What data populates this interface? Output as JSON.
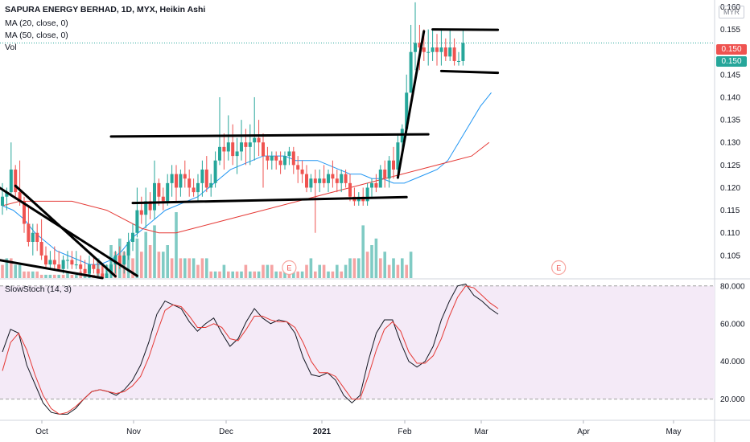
{
  "header": {
    "title": "SAPURA ENERGY BERHAD, 1D, MYX, Heikin Ashi",
    "ma20_label": "MA (20, close, 0)",
    "ma50_label": "MA (50, close, 0)",
    "vol_label": "Vol",
    "currency": "MYR"
  },
  "price_badges": {
    "red": "0.150",
    "green": "0.150"
  },
  "oscillator": {
    "label": "SlowStoch (14, 3)"
  },
  "colors": {
    "up": "#26a69a",
    "down": "#ef5350",
    "ma20": "#2196f3",
    "ma50": "#e53935",
    "vol_up": "#80cbc4",
    "vol_down": "#f5a3a3",
    "stoch_k": "#131722",
    "stoch_d": "#e53935",
    "stoch_band": "#f4eaf7",
    "grid": "#e0e3eb",
    "axis_text": "#131722"
  },
  "chart_data": [
    {
      "type": "candlestick",
      "title": "SAPURA ENERGY BERHAD, 1D, MYX, Heikin Ashi",
      "x_labels": [
        "Oct",
        "Nov",
        "Dec",
        "2021",
        "Feb",
        "Mar",
        "Apr",
        "May"
      ],
      "y_ticks": [
        "0.105",
        "0.110",
        "0.115",
        "0.120",
        "0.125",
        "0.130",
        "0.135",
        "0.140",
        "0.145",
        "0.150",
        "0.155",
        "0.160"
      ],
      "ylim": [
        0.1,
        0.1615
      ],
      "scale": "linear",
      "grid": false,
      "earnings_marks": [
        "E",
        "E"
      ],
      "candles": [
        [
          0.116,
          0.121,
          0.114,
          0.118
        ],
        [
          0.118,
          0.12,
          0.115,
          0.119
        ],
        [
          0.119,
          0.13,
          0.118,
          0.124
        ],
        [
          0.124,
          0.125,
          0.118,
          0.119
        ],
        [
          0.119,
          0.126,
          0.116,
          0.117
        ],
        [
          0.117,
          0.118,
          0.11,
          0.112
        ],
        [
          0.112,
          0.116,
          0.107,
          0.108
        ],
        [
          0.108,
          0.112,
          0.105,
          0.11
        ],
        [
          0.11,
          0.112,
          0.106,
          0.108
        ],
        [
          0.108,
          0.113,
          0.104,
          0.105
        ],
        [
          0.105,
          0.107,
          0.102,
          0.103
        ],
        [
          0.103,
          0.106,
          0.102,
          0.104
        ],
        [
          0.104,
          0.107,
          0.102,
          0.103
        ],
        [
          0.103,
          0.106,
          0.102,
          0.102
        ],
        [
          0.102,
          0.105,
          0.101,
          0.104
        ],
        [
          0.104,
          0.106,
          0.102,
          0.104
        ],
        [
          0.104,
          0.106,
          0.102,
          0.103
        ],
        [
          0.103,
          0.106,
          0.102,
          0.103
        ],
        [
          0.103,
          0.105,
          0.101,
          0.102
        ],
        [
          0.102,
          0.104,
          0.101,
          0.101
        ],
        [
          0.101,
          0.105,
          0.1,
          0.103
        ],
        [
          0.103,
          0.105,
          0.101,
          0.102
        ],
        [
          0.102,
          0.104,
          0.1,
          0.101
        ],
        [
          0.101,
          0.103,
          0.1,
          0.1
        ],
        [
          0.1,
          0.103,
          0.1,
          0.101
        ],
        [
          0.101,
          0.104,
          0.1,
          0.103
        ],
        [
          0.103,
          0.106,
          0.101,
          0.105
        ],
        [
          0.105,
          0.107,
          0.102,
          0.103
        ],
        [
          0.103,
          0.106,
          0.101,
          0.105
        ],
        [
          0.105,
          0.11,
          0.104,
          0.108
        ],
        [
          0.108,
          0.112,
          0.106,
          0.11
        ],
        [
          0.11,
          0.12,
          0.109,
          0.115
        ],
        [
          0.115,
          0.118,
          0.112,
          0.114
        ],
        [
          0.114,
          0.12,
          0.111,
          0.117
        ],
        [
          0.117,
          0.119,
          0.113,
          0.115
        ],
        [
          0.115,
          0.126,
          0.113,
          0.121
        ],
        [
          0.121,
          0.122,
          0.116,
          0.118
        ],
        [
          0.118,
          0.12,
          0.115,
          0.117
        ],
        [
          0.117,
          0.123,
          0.116,
          0.121
        ],
        [
          0.121,
          0.125,
          0.118,
          0.123
        ],
        [
          0.123,
          0.125,
          0.117,
          0.12
        ],
        [
          0.12,
          0.124,
          0.118,
          0.123
        ],
        [
          0.123,
          0.126,
          0.12,
          0.122
        ],
        [
          0.122,
          0.124,
          0.118,
          0.12
        ],
        [
          0.12,
          0.122,
          0.118,
          0.119
        ],
        [
          0.119,
          0.123,
          0.117,
          0.121
        ],
        [
          0.121,
          0.126,
          0.118,
          0.124
        ],
        [
          0.124,
          0.127,
          0.119,
          0.12
        ],
        [
          0.12,
          0.123,
          0.118,
          0.121
        ],
        [
          0.121,
          0.128,
          0.12,
          0.126
        ],
        [
          0.126,
          0.14,
          0.125,
          0.129
        ],
        [
          0.129,
          0.132,
          0.124,
          0.128
        ],
        [
          0.128,
          0.136,
          0.126,
          0.13
        ],
        [
          0.13,
          0.134,
          0.125,
          0.127
        ],
        [
          0.127,
          0.131,
          0.123,
          0.128
        ],
        [
          0.128,
          0.135,
          0.126,
          0.13
        ],
        [
          0.13,
          0.133,
          0.125,
          0.129
        ],
        [
          0.129,
          0.134,
          0.125,
          0.13
        ],
        [
          0.13,
          0.14,
          0.126,
          0.131
        ],
        [
          0.131,
          0.135,
          0.127,
          0.13
        ],
        [
          0.13,
          0.132,
          0.12,
          0.127
        ],
        [
          0.127,
          0.129,
          0.124,
          0.126
        ],
        [
          0.126,
          0.128,
          0.124,
          0.127
        ],
        [
          0.127,
          0.128,
          0.124,
          0.126
        ],
        [
          0.126,
          0.128,
          0.123,
          0.125
        ],
        [
          0.125,
          0.128,
          0.124,
          0.127
        ],
        [
          0.127,
          0.129,
          0.125,
          0.128
        ],
        [
          0.128,
          0.129,
          0.123,
          0.125
        ],
        [
          0.125,
          0.127,
          0.121,
          0.124
        ],
        [
          0.124,
          0.126,
          0.121,
          0.123
        ],
        [
          0.123,
          0.125,
          0.119,
          0.12
        ],
        [
          0.12,
          0.123,
          0.119,
          0.122
        ],
        [
          0.122,
          0.124,
          0.11,
          0.121
        ],
        [
          0.121,
          0.124,
          0.119,
          0.122
        ],
        [
          0.122,
          0.125,
          0.12,
          0.121
        ],
        [
          0.121,
          0.124,
          0.119,
          0.123
        ],
        [
          0.123,
          0.126,
          0.12,
          0.122
        ],
        [
          0.122,
          0.124,
          0.119,
          0.121
        ],
        [
          0.121,
          0.124,
          0.119,
          0.123
        ],
        [
          0.123,
          0.124,
          0.12,
          0.121
        ],
        [
          0.121,
          0.123,
          0.117,
          0.118
        ],
        [
          0.118,
          0.12,
          0.116,
          0.117
        ],
        [
          0.117,
          0.119,
          0.116,
          0.118
        ],
        [
          0.118,
          0.12,
          0.116,
          0.117
        ],
        [
          0.117,
          0.121,
          0.116,
          0.12
        ],
        [
          0.12,
          0.122,
          0.118,
          0.121
        ],
        [
          0.121,
          0.123,
          0.119,
          0.12
        ],
        [
          0.12,
          0.125,
          0.12,
          0.124
        ],
        [
          0.124,
          0.126,
          0.12,
          0.122
        ],
        [
          0.122,
          0.127,
          0.12,
          0.126
        ],
        [
          0.126,
          0.129,
          0.122,
          0.124
        ],
        [
          0.124,
          0.132,
          0.123,
          0.13
        ],
        [
          0.13,
          0.134,
          0.128,
          0.133
        ],
        [
          0.133,
          0.145,
          0.133,
          0.141
        ],
        [
          0.141,
          0.156,
          0.141,
          0.15
        ],
        [
          0.15,
          0.161,
          0.146,
          0.152
        ],
        [
          0.152,
          0.156,
          0.146,
          0.151
        ],
        [
          0.151,
          0.155,
          0.148,
          0.15
        ],
        [
          0.15,
          0.155,
          0.147,
          0.15
        ],
        [
          0.15,
          0.155,
          0.148,
          0.151
        ],
        [
          0.151,
          0.154,
          0.147,
          0.15
        ],
        [
          0.15,
          0.155,
          0.147,
          0.151
        ],
        [
          0.151,
          0.153,
          0.148,
          0.149
        ],
        [
          0.149,
          0.155,
          0.148,
          0.151
        ],
        [
          0.151,
          0.153,
          0.147,
          0.148
        ],
        [
          0.148,
          0.15,
          0.147,
          0.148
        ],
        [
          0.148,
          0.155,
          0.147,
          0.152
        ]
      ],
      "ma20": [
        0.116,
        0.115,
        0.113,
        0.11,
        0.108,
        0.106,
        0.105,
        0.104,
        0.103,
        0.103,
        0.104,
        0.106,
        0.109,
        0.111,
        0.113,
        0.115,
        0.116,
        0.117,
        0.118,
        0.12,
        0.122,
        0.124,
        0.125,
        0.126,
        0.127,
        0.127,
        0.127,
        0.126,
        0.126,
        0.126,
        0.125,
        0.124,
        0.123,
        0.123,
        0.122,
        0.122,
        0.121,
        0.121,
        0.122,
        0.123,
        0.124,
        0.126,
        0.13,
        0.134,
        0.138,
        0.141
      ],
      "ma50": [
        0.116,
        0.117,
        0.117,
        0.117,
        0.117,
        0.116,
        0.115,
        0.113,
        0.111,
        0.11,
        0.11,
        0.111,
        0.112,
        0.113,
        0.114,
        0.115,
        0.116,
        0.117,
        0.118,
        0.119,
        0.12,
        0.121,
        0.122,
        0.123,
        0.124,
        0.125,
        0.126,
        0.127,
        0.13
      ],
      "volume": [
        [
          0,
          2
        ],
        [
          1,
          3
        ],
        [
          0,
          3
        ],
        [
          1,
          2
        ],
        [
          1,
          2
        ],
        [
          0,
          1
        ],
        [
          0,
          1
        ],
        [
          1,
          1
        ],
        [
          0,
          1
        ],
        [
          0,
          0.5
        ],
        [
          1,
          0.5
        ],
        [
          1,
          0.5
        ],
        [
          0,
          0.5
        ],
        [
          1,
          0.5
        ],
        [
          0,
          0.5
        ],
        [
          1,
          1
        ],
        [
          0,
          0.5
        ],
        [
          1,
          0.5
        ],
        [
          0,
          1
        ],
        [
          1,
          0.5
        ],
        [
          1,
          1
        ],
        [
          0,
          0.5
        ],
        [
          1,
          3
        ],
        [
          0,
          2
        ],
        [
          1,
          2
        ],
        [
          1,
          5
        ],
        [
          0,
          4
        ],
        [
          1,
          6
        ],
        [
          0,
          4
        ],
        [
          1,
          5
        ],
        [
          0,
          3
        ],
        [
          1,
          6
        ],
        [
          0,
          4
        ],
        [
          1,
          7
        ],
        [
          0,
          5
        ],
        [
          1,
          8
        ],
        [
          0,
          4
        ],
        [
          1,
          4
        ],
        [
          1,
          5
        ],
        [
          0,
          3
        ],
        [
          1,
          10
        ],
        [
          0,
          3
        ],
        [
          1,
          3
        ],
        [
          0,
          3
        ],
        [
          1,
          3
        ],
        [
          0,
          2
        ],
        [
          0,
          3
        ],
        [
          1,
          3
        ],
        [
          0,
          1
        ],
        [
          1,
          1
        ],
        [
          0,
          1
        ],
        [
          1,
          2
        ],
        [
          0,
          1
        ],
        [
          1,
          1
        ],
        [
          0,
          1
        ],
        [
          1,
          1
        ],
        [
          0,
          2
        ],
        [
          1,
          1
        ],
        [
          0,
          1
        ],
        [
          1,
          1
        ],
        [
          0,
          2
        ],
        [
          1,
          2
        ],
        [
          0,
          2
        ],
        [
          1,
          1
        ],
        [
          0,
          1
        ],
        [
          1,
          2
        ],
        [
          0,
          1
        ],
        [
          1,
          1
        ],
        [
          0,
          1
        ],
        [
          1,
          1
        ],
        [
          0,
          2
        ],
        [
          1,
          3
        ],
        [
          0,
          1
        ],
        [
          1,
          2
        ],
        [
          0,
          2
        ],
        [
          1,
          1
        ],
        [
          0,
          1
        ],
        [
          1,
          2
        ],
        [
          0,
          1
        ],
        [
          1,
          2
        ],
        [
          1,
          3
        ],
        [
          0,
          3
        ],
        [
          1,
          3
        ],
        [
          1,
          8
        ],
        [
          0,
          4
        ],
        [
          1,
          5
        ],
        [
          1,
          6
        ],
        [
          0,
          3
        ],
        [
          1,
          4
        ],
        [
          0,
          2
        ],
        [
          1,
          3
        ],
        [
          0,
          2
        ],
        [
          1,
          3
        ],
        [
          0,
          2
        ],
        [
          1,
          4
        ]
      ],
      "trendlines": [
        {
          "from": [
            -2,
            0.1208
          ],
          "to": [
            31,
            0.1005
          ]
        },
        {
          "from": [
            3,
            0.1204
          ],
          "to": [
            26,
            0.1004
          ]
        },
        {
          "from": [
            -2,
            0.1042
          ],
          "to": [
            23,
            0.1
          ]
        },
        {
          "from": [
            30,
            0.1166
          ],
          "to": [
            93,
            0.1179
          ]
        },
        {
          "from": [
            25,
            0.1313
          ],
          "to": [
            98,
            0.1318
          ]
        },
        {
          "from": [
            91,
            0.1222
          ],
          "to": [
            97,
            0.1546
          ]
        },
        {
          "from": [
            99,
            0.155
          ],
          "to": [
            114,
            0.1549
          ]
        },
        {
          "from": [
            101,
            0.1458
          ],
          "to": [
            114,
            0.1454
          ]
        }
      ]
    },
    {
      "type": "line",
      "title": "SlowStoch (14, 3)",
      "y_ticks": [
        "20.000",
        "40.000",
        "60.000",
        "80.000"
      ],
      "ylim": [
        9.2,
        82.9
      ],
      "band": [
        20,
        80
      ],
      "series": [
        {
          "name": "%K",
          "values": [
            45,
            57,
            55,
            38,
            28,
            18,
            13,
            12,
            12,
            15,
            20,
            24,
            25,
            24,
            22,
            25,
            30,
            38,
            50,
            65,
            72,
            70,
            68,
            61,
            56,
            60,
            63,
            55,
            48,
            52,
            61,
            68,
            63,
            60,
            62,
            61,
            55,
            42,
            33,
            32,
            34,
            30,
            22,
            18,
            22,
            40,
            55,
            62,
            62,
            50,
            40,
            37,
            40,
            48,
            62,
            72,
            80,
            81,
            75,
            72,
            68,
            65
          ]
        },
        {
          "name": "%D",
          "values": [
            35,
            50,
            55,
            46,
            33,
            22,
            15,
            12,
            13,
            16,
            20,
            24,
            25,
            24,
            23,
            24,
            27,
            32,
            42,
            55,
            67,
            70,
            69,
            64,
            58,
            58,
            60,
            58,
            52,
            51,
            57,
            64,
            64,
            62,
            61,
            61,
            58,
            50,
            40,
            34,
            34,
            32,
            26,
            20,
            20,
            32,
            46,
            57,
            61,
            56,
            45,
            39,
            39,
            43,
            52,
            64,
            74,
            80,
            79,
            75,
            71,
            68
          ]
        }
      ]
    }
  ]
}
